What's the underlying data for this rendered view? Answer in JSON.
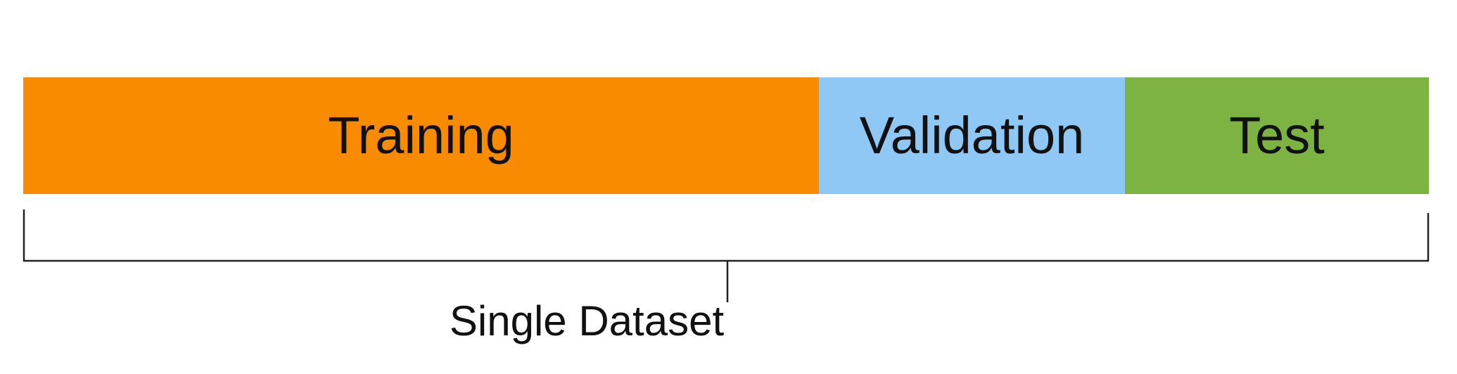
{
  "segments": {
    "training": {
      "label": "Training",
      "color": "#f88b00"
    },
    "validation": {
      "label": "Validation",
      "color": "#8fc7f5"
    },
    "test": {
      "label": "Test",
      "color": "#7cb342"
    }
  },
  "bracket": {
    "label": "Single Dataset"
  }
}
